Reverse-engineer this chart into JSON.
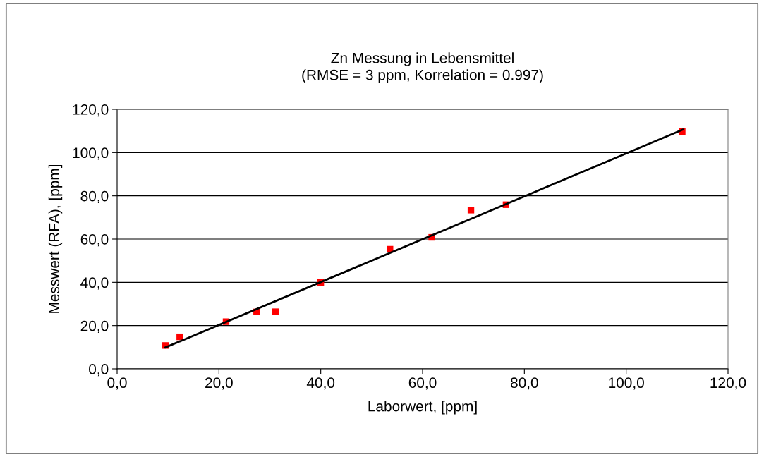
{
  "chart_data": {
    "type": "scatter",
    "title": "Zn Messung in Lebensmittel\n(RMSE = 3 ppm, Korrelation = 0.997)",
    "xlabel": "Laborwert, [ppm]",
    "ylabel": "Messwert (RFA), [ppm]",
    "series": [
      {
        "color": "#ff0000",
        "marker": "square",
        "x": [
          9.5,
          12.3,
          21.4,
          27.4,
          31.1,
          40.0,
          53.6,
          61.8,
          69.5,
          76.4,
          111.0
        ],
        "values": [
          10.8,
          14.8,
          21.8,
          26.3,
          26.4,
          39.9,
          55.3,
          60.8,
          73.4,
          75.9,
          109.7
        ]
      },
      {
        "type": "line",
        "color": "#000000",
        "line_style": "solid",
        "marker": "none",
        "x": [
          9.5,
          111.1
        ],
        "values": [
          9.9,
          110.6
        ]
      }
    ],
    "xlim": [
      0,
      120
    ],
    "ylim": [
      0,
      120
    ],
    "xticks": [
      {
        "value": 0,
        "label": "0,0"
      },
      {
        "value": 20,
        "label": "20,0"
      },
      {
        "value": 40,
        "label": "40,0"
      },
      {
        "value": 60,
        "label": "60,0"
      },
      {
        "value": 80,
        "label": "80,0"
      },
      {
        "value": 100,
        "label": "100,0"
      },
      {
        "value": 120,
        "label": "120,0"
      }
    ],
    "yticks": [
      {
        "value": 0,
        "label": "0,0"
      },
      {
        "value": 20,
        "label": "20,0"
      },
      {
        "value": 40,
        "label": "40,0"
      },
      {
        "value": 60,
        "label": "60,0"
      },
      {
        "value": 80,
        "label": "80,0"
      },
      {
        "value": 100,
        "label": "100,0"
      },
      {
        "value": 120,
        "label": "120,0"
      }
    ],
    "grid": "y",
    "legend": false
  }
}
